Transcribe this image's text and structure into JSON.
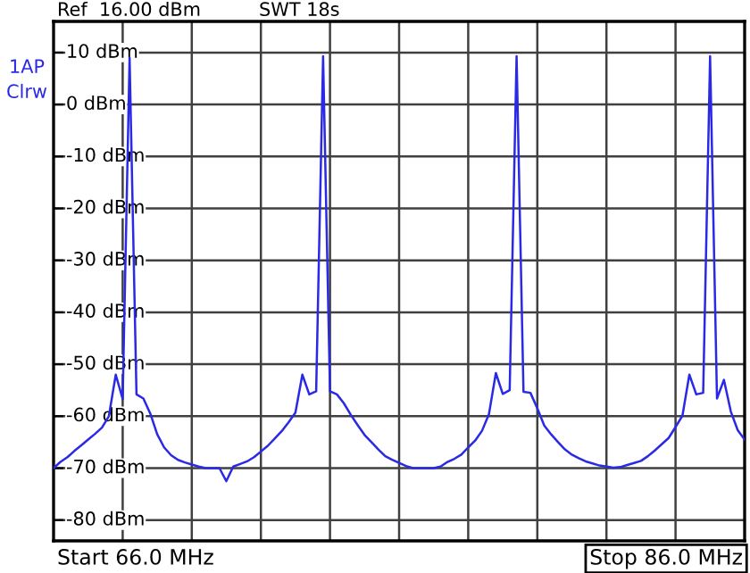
{
  "chart_data": {
    "type": "line",
    "annotations": [
      "Ref  16.00 dBm",
      "SWT 18s",
      "1AP",
      "Clrw",
      "Start 66.0 MHz",
      "Stop 86.0 MHz"
    ],
    "categories": [
      null,
      null,
      null,
      null,
      null,
      null,
      null,
      null,
      null,
      null,
      null,
      null,
      null,
      null,
      null,
      null,
      null,
      null,
      null,
      null,
      null,
      null,
      null,
      null,
      null,
      null,
      null,
      null,
      null,
      null,
      null,
      null,
      null,
      null,
      null,
      null,
      null,
      null,
      null,
      null,
      null,
      null,
      null,
      null,
      null,
      null,
      null,
      null,
      null,
      null,
      null,
      null,
      null,
      null,
      null,
      null,
      null,
      null,
      null,
      null,
      null,
      null,
      null,
      null,
      null,
      null,
      null,
      null,
      null,
      null,
      null,
      null,
      null,
      null,
      null,
      null,
      null,
      null,
      null,
      null,
      null,
      null,
      null,
      null,
      null,
      null,
      null,
      null,
      null,
      null,
      null,
      null,
      null,
      null,
      null,
      null,
      null,
      null,
      null,
      null,
      null
    ],
    "series": [
      {
        "color": "#2a2ae6",
        "values": [
          -70,
          -68.8,
          -67.9,
          -66.7,
          -65.6,
          -64.5,
          -63.4,
          -62.2,
          -60,
          -52,
          -56.7,
          9,
          -55.8,
          -56.6,
          -59.5,
          -63.5,
          -66,
          -67.5,
          -68.4,
          -68.9,
          -69.3,
          -69.7,
          -70,
          -70,
          -70,
          -72.5,
          -69.7,
          -69.2,
          -68.7,
          -67.9,
          -66.8,
          -65.7,
          -64.3,
          -62.9,
          -61.2,
          -59.3,
          -52,
          -55.8,
          -55.2,
          9.3,
          -55.2,
          -55.8,
          -57.5,
          -59.7,
          -61.7,
          -63.6,
          -65,
          -66.4,
          -67.7,
          -68.4,
          -69,
          -69.6,
          -70,
          -70,
          -70,
          -70,
          -69.7,
          -68.8,
          -68.2,
          -67.4,
          -66,
          -64.7,
          -62.8,
          -59.6,
          -51.7,
          -55.7,
          -55,
          9.3,
          -55.3,
          -55.5,
          -58.5,
          -61.8,
          -63.5,
          -65,
          -66.4,
          -67.4,
          -68.1,
          -68.7,
          -69.1,
          -69.5,
          -69.7,
          -69.9,
          -69.8,
          -69.4,
          -69,
          -68.6,
          -67.7,
          -66.6,
          -65.4,
          -64.2,
          -62.1,
          -59.9,
          -52,
          -55.8,
          -55.5,
          9.3,
          -56.6,
          -53,
          -59.1,
          -62.7,
          -64.5
        ]
      }
    ],
    "ylim": [
      -84,
      16
    ],
    "yticks": [
      {
        "value": 10,
        "label": "10 dBm"
      },
      {
        "value": 0,
        "label": "0 dBm"
      },
      {
        "value": -10,
        "label": "-10 dBm"
      },
      {
        "value": -20,
        "label": "-20 dBm"
      },
      {
        "value": -30,
        "label": "-30 dBm"
      },
      {
        "value": -40,
        "label": "-40 dBm"
      },
      {
        "value": -50,
        "label": "-50 dBm"
      },
      {
        "value": -60,
        "label": "-60 dBm"
      },
      {
        "value": -70,
        "label": "-70 dBm"
      },
      {
        "value": -80,
        "label": "-80 dBm"
      }
    ],
    "grid": true,
    "tick_labels": "y",
    "marker": "none",
    "line_style": "solid"
  }
}
